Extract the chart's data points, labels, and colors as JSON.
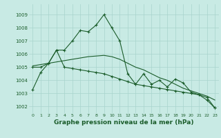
{
  "title": "Graphe pression niveau de la mer (hPa)",
  "bg_color": "#c8eae4",
  "grid_color": "#a8d4cc",
  "line_color": "#1a5c2a",
  "xlim": [
    -0.5,
    23.5
  ],
  "ylim": [
    1001.5,
    1009.8
  ],
  "yticks": [
    1002,
    1003,
    1004,
    1005,
    1006,
    1007,
    1008,
    1009
  ],
  "xticks": [
    0,
    1,
    2,
    3,
    4,
    5,
    6,
    7,
    8,
    9,
    10,
    11,
    12,
    13,
    14,
    15,
    16,
    17,
    18,
    19,
    20,
    21,
    22,
    23
  ],
  "series1": [
    1003.3,
    1004.6,
    1005.3,
    1006.3,
    1006.3,
    1007.0,
    1007.8,
    1007.7,
    1008.2,
    1009.0,
    1008.0,
    1007.0,
    1004.5,
    1003.7,
    1004.5,
    1003.7,
    1004.0,
    1003.5,
    1004.1,
    1003.8,
    1003.1,
    1002.9,
    1002.5,
    1001.9
  ],
  "series2": [
    1005.0,
    1005.0,
    1005.3,
    1006.3,
    1005.0,
    1004.9,
    1004.8,
    1004.7,
    1004.6,
    1004.5,
    1004.3,
    1004.1,
    1003.9,
    1003.7,
    1003.6,
    1003.5,
    1003.4,
    1003.3,
    1003.2,
    1003.1,
    1003.0,
    1002.9,
    1002.7,
    1001.9
  ],
  "series3": [
    1005.1,
    1005.2,
    1005.3,
    1005.4,
    1005.5,
    1005.6,
    1005.7,
    1005.8,
    1005.85,
    1005.9,
    1005.8,
    1005.6,
    1005.3,
    1005.0,
    1004.8,
    1004.5,
    1004.2,
    1004.0,
    1003.7,
    1003.4,
    1003.2,
    1003.0,
    1002.8,
    1002.5
  ]
}
